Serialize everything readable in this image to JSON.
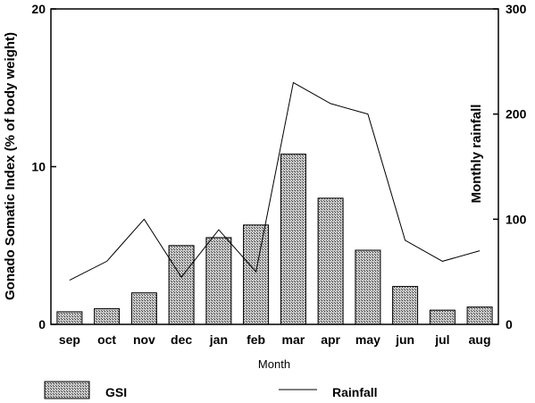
{
  "chart_data": {
    "type": "bar",
    "categories": [
      "sep",
      "oct",
      "nov",
      "dec",
      "jan",
      "feb",
      "mar",
      "apr",
      "may",
      "jun",
      "jul",
      "aug"
    ],
    "xlabel": "Month",
    "ylabel": "Gonado Somatic Index (% of body weight)",
    "y2label": "Monthly rainfall",
    "ylim": [
      0,
      20
    ],
    "y2lim": [
      0,
      300
    ],
    "yticks": [
      0,
      10,
      20
    ],
    "y2ticks": [
      0,
      100,
      200,
      300
    ],
    "grid": false,
    "legend_position": "bottom",
    "series": [
      {
        "name": "GSI",
        "type": "bar",
        "axis": "left",
        "values": [
          0.8,
          1.0,
          2.0,
          5.0,
          5.5,
          6.3,
          10.8,
          8.0,
          4.7,
          2.4,
          0.9,
          1.1
        ]
      },
      {
        "name": "Rainfall",
        "type": "line",
        "axis": "right",
        "values": [
          42,
          60,
          100,
          45,
          90,
          50,
          230,
          210,
          200,
          80,
          60,
          70
        ]
      }
    ]
  }
}
